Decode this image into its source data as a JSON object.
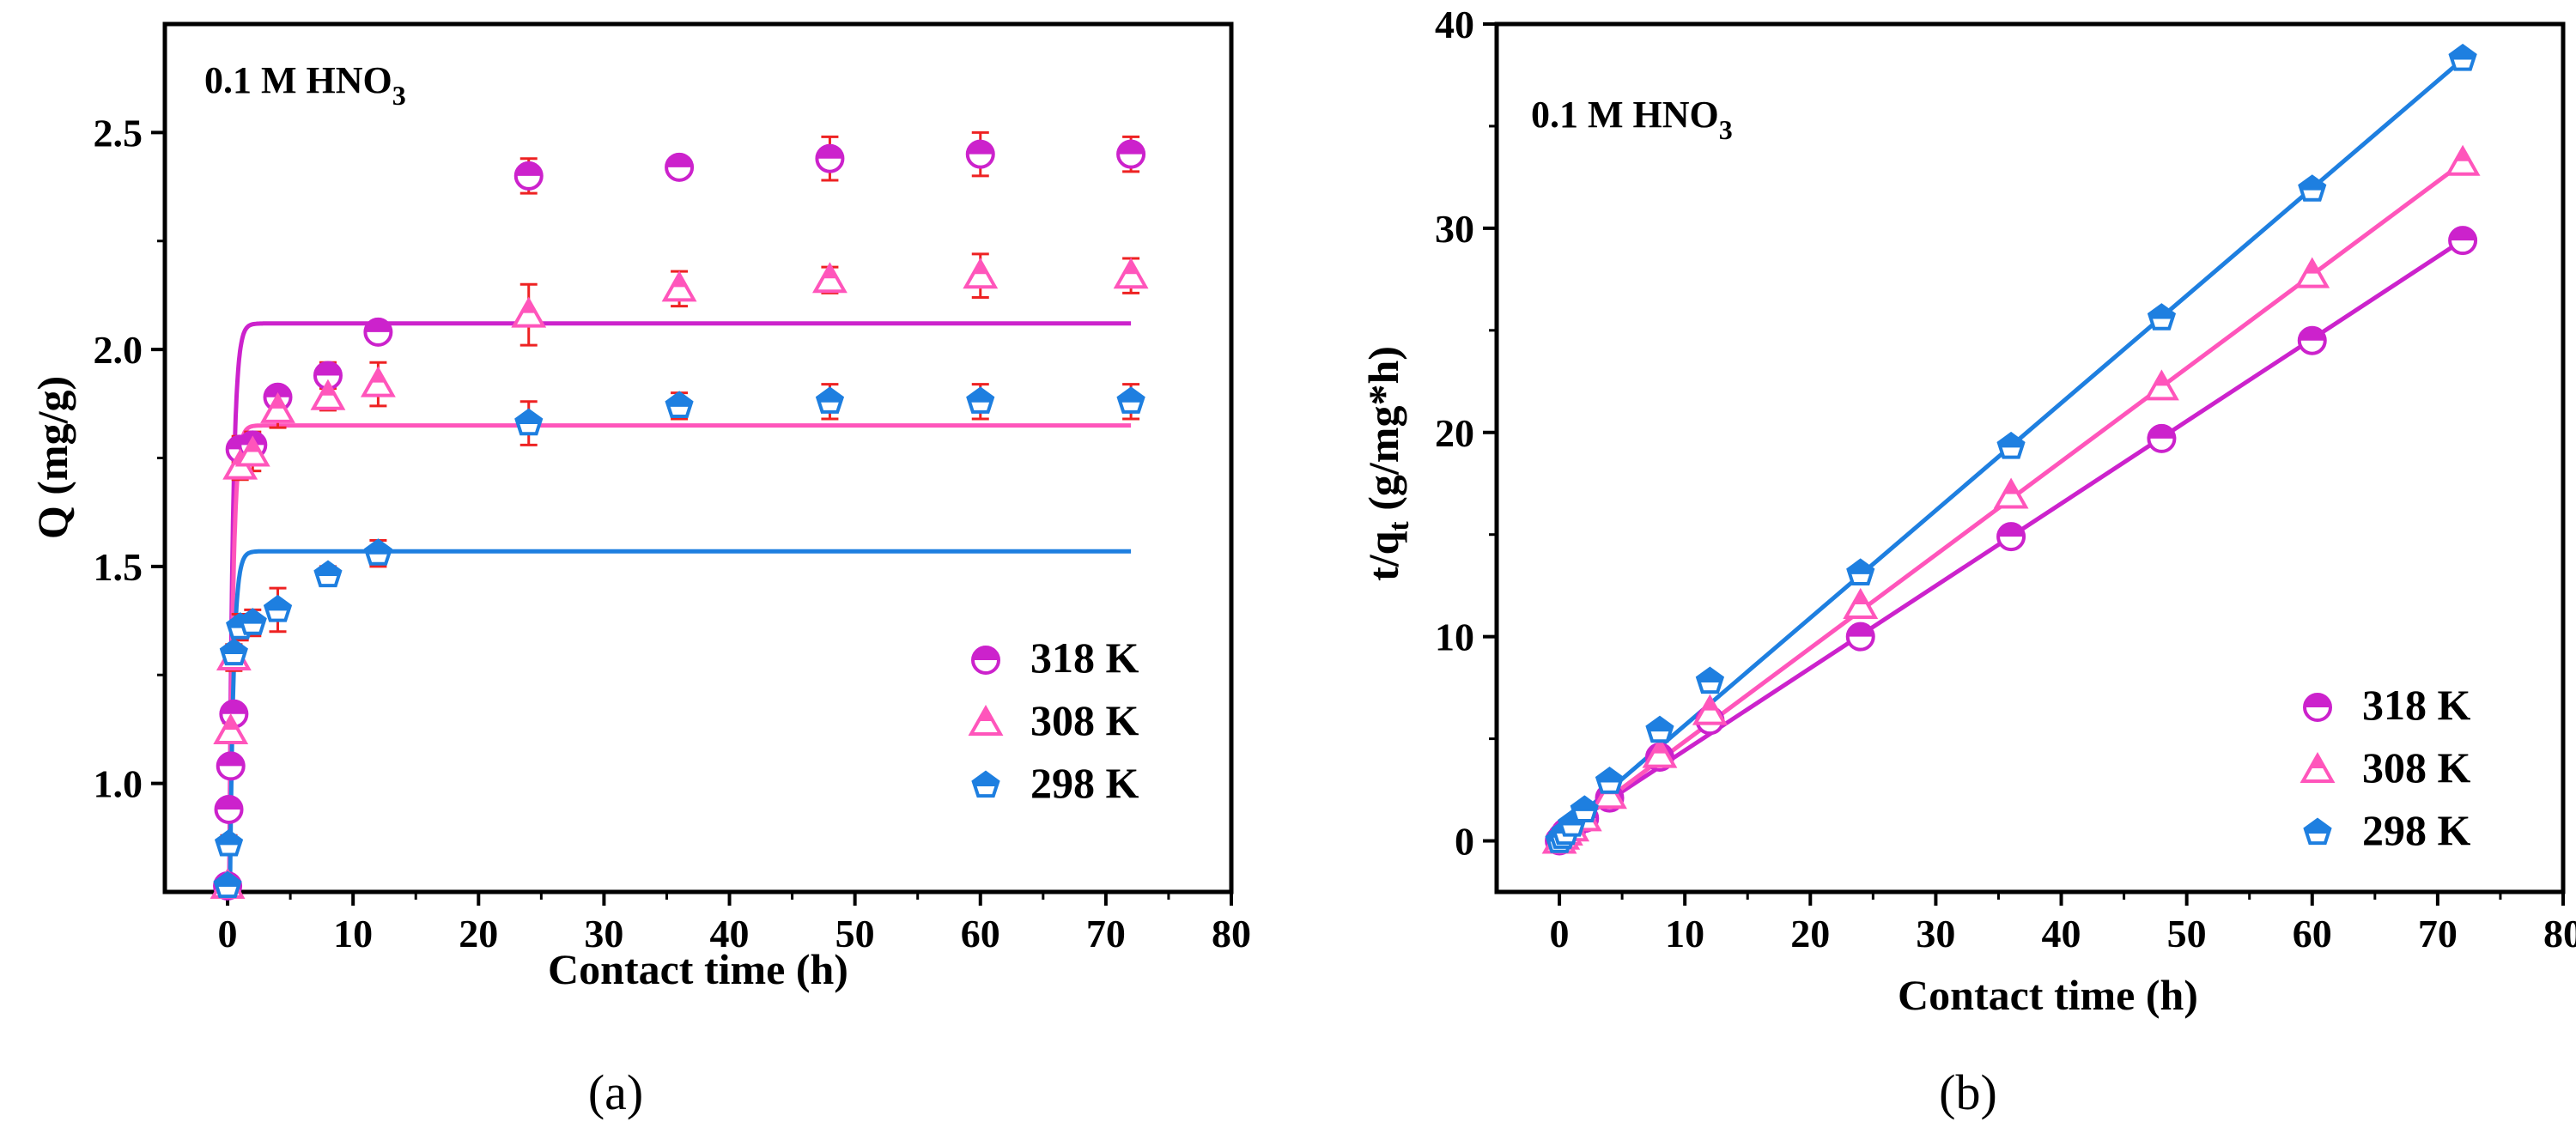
{
  "chart_data": [
    {
      "panel": "a",
      "panel_label": "(a)",
      "type": "scatter",
      "annotation": {
        "main": "0.1 M HNO",
        "sub": "3"
      },
      "xlabel": "Contact time (h)",
      "ylabel": "Q (mg/g)",
      "xlim": [
        -5,
        80
      ],
      "ylim": [
        0.75,
        2.75
      ],
      "xticks": [
        "0",
        "10",
        "20",
        "30",
        "40",
        "50",
        "60",
        "70",
        "80"
      ],
      "yticks": [
        "1.0",
        "1.5",
        "2.0",
        "2.5"
      ],
      "legend_position": "bottom-right",
      "series": [
        {
          "name": "318 K",
          "color": "#cc22cc",
          "marker": "circle",
          "x": [
            0,
            0.1,
            0.25,
            0.5,
            1,
            2,
            4,
            8,
            12,
            24,
            36,
            48,
            60,
            72
          ],
          "y": [
            0.76,
            0.94,
            1.04,
            1.16,
            1.77,
            1.78,
            1.89,
            1.94,
            2.04,
            2.4,
            2.42,
            2.44,
            2.45,
            2.45
          ],
          "err": [
            0.01,
            0.01,
            0.01,
            0.01,
            0.03,
            0.03,
            0.02,
            0.03,
            0.02,
            0.04,
            0.01,
            0.05,
            0.05,
            0.04
          ],
          "fit": {
            "model": "pseudo-first-order",
            "qe": 2.06,
            "k": 3.5
          }
        },
        {
          "name": "308 K",
          "color": "#ff55bb",
          "marker": "triangle",
          "x": [
            0,
            0.25,
            0.5,
            1,
            2,
            4,
            8,
            12,
            24,
            36,
            48,
            60,
            72
          ],
          "y": [
            0.75,
            1.12,
            1.29,
            1.73,
            1.76,
            1.86,
            1.89,
            1.92,
            2.08,
            2.14,
            2.16,
            2.17,
            2.17
          ],
          "err": [
            0.01,
            0.02,
            0.03,
            0.03,
            0.04,
            0.04,
            0.03,
            0.05,
            0.07,
            0.04,
            0.03,
            0.05,
            0.04
          ],
          "fit": {
            "model": "pseudo-first-order",
            "qe": 1.825,
            "k": 3.5
          }
        },
        {
          "name": "298 K",
          "color": "#1e7fe0",
          "marker": "pentagon",
          "x": [
            0,
            0.1,
            0.5,
            1,
            2,
            4,
            8,
            12,
            24,
            36,
            48,
            60,
            72
          ],
          "y": [
            0.76,
            0.86,
            1.3,
            1.36,
            1.37,
            1.4,
            1.48,
            1.53,
            1.83,
            1.87,
            1.88,
            1.88,
            1.88
          ],
          "err": [
            0.01,
            0.02,
            0.02,
            0.03,
            0.03,
            0.05,
            0.02,
            0.03,
            0.05,
            0.03,
            0.04,
            0.04,
            0.04
          ],
          "fit": {
            "model": "pseudo-first-order",
            "qe": 1.535,
            "k": 3.5
          }
        }
      ]
    },
    {
      "panel": "b",
      "panel_label": "(b)",
      "type": "scatter",
      "annotation": {
        "main": "0.1 M HNO",
        "sub": "3"
      },
      "xlabel": "Contact time (h)",
      "ylabel": "t/q",
      "ylabel_sub": "t",
      "ylabel_units": " (g/mg*h)",
      "xlim": [
        -5,
        80
      ],
      "ylim": [
        -2.5,
        40
      ],
      "xticks": [
        "0",
        "10",
        "20",
        "30",
        "40",
        "50",
        "60",
        "70",
        "80"
      ],
      "yticks": [
        "0",
        "10",
        "20",
        "30",
        "40"
      ],
      "legend_position": "bottom-right",
      "series": [
        {
          "name": "318 K",
          "color": "#cc22cc",
          "marker": "circle",
          "x": [
            0,
            0.25,
            0.5,
            1,
            2,
            4,
            8,
            12,
            24,
            36,
            48,
            60,
            72
          ],
          "y": [
            0.0,
            0.2,
            0.4,
            0.6,
            1.1,
            2.1,
            4.1,
            5.9,
            10.0,
            14.9,
            19.7,
            24.5,
            29.4
          ],
          "fit": {
            "model": "linear",
            "slope": 0.403,
            "intercept": 0.4
          }
        },
        {
          "name": "308 K",
          "color": "#ff55bb",
          "marker": "triangle",
          "x": [
            0,
            0.25,
            0.5,
            1,
            2,
            4,
            8,
            12,
            24,
            36,
            48,
            60,
            72
          ],
          "y": [
            0.0,
            0.2,
            0.4,
            0.6,
            1.1,
            2.2,
            4.2,
            6.3,
            11.5,
            16.9,
            22.2,
            27.7,
            33.2
          ],
          "fit": {
            "model": "linear",
            "slope": 0.457,
            "intercept": 0.3
          }
        },
        {
          "name": "298 K",
          "color": "#1e7fe0",
          "marker": "pentagon",
          "x": [
            0,
            0.25,
            0.5,
            1,
            2,
            4,
            8,
            12,
            24,
            36,
            48,
            60,
            72
          ],
          "y": [
            0.0,
            0.2,
            0.4,
            0.8,
            1.5,
            2.9,
            5.4,
            7.8,
            13.1,
            19.3,
            25.6,
            31.9,
            38.3
          ],
          "fit": {
            "model": "linear",
            "slope": 0.526,
            "intercept": 0.4
          }
        }
      ]
    }
  ]
}
